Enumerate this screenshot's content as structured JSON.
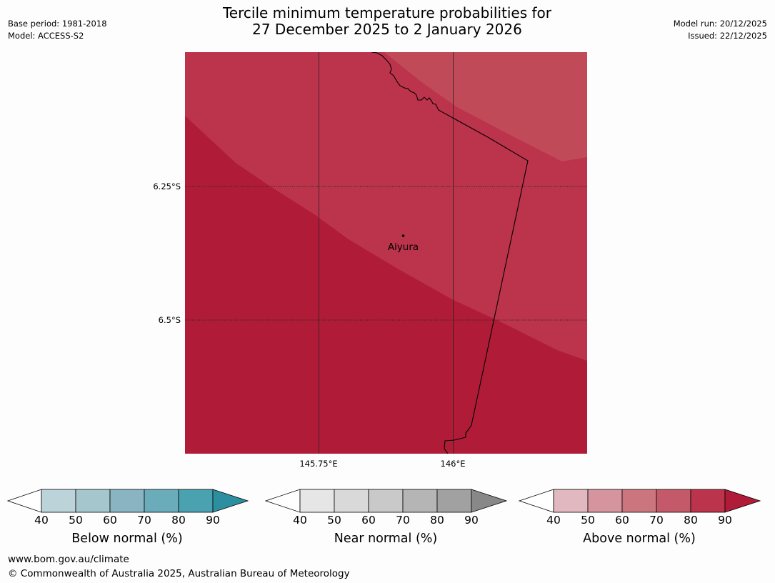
{
  "header": {
    "title_line1": "Tercile minimum temperature probabilities for",
    "title_line2": "27 December 2025 to 2 January 2026",
    "base_period": "Base period: 1981-2018",
    "model": "Model: ACCESS-S2",
    "model_run": "Model run: 20/12/2025",
    "issued": "Issued: 22/12/2025"
  },
  "map": {
    "lat_labels": [
      "6.25°S",
      "6.5°S"
    ],
    "lon_labels": [
      "145.75°E",
      "146°E"
    ],
    "place": "Aiyura",
    "colors": {
      "above_80_90": "#b01c38",
      "above_70_80": "#bc334c",
      "above_60_70": "#c04a57"
    }
  },
  "colorbars": [
    {
      "title": "Below normal (%)",
      "ticks": [
        "40",
        "50",
        "60",
        "70",
        "80",
        "90"
      ],
      "colors": [
        "#ffffff",
        "#bcd3da",
        "#a6c6cd",
        "#88b5c1",
        "#6aacb9",
        "#4aa1af",
        "#2b8f9f"
      ]
    },
    {
      "title": "Near normal (%)",
      "ticks": [
        "40",
        "50",
        "60",
        "70",
        "80",
        "90"
      ],
      "colors": [
        "#ffffff",
        "#e6e6e6",
        "#d9d9d9",
        "#c9c9c9",
        "#b5b5b5",
        "#a1a1a1",
        "#888888"
      ]
    },
    {
      "title": "Above normal (%)",
      "ticks": [
        "40",
        "50",
        "60",
        "70",
        "80",
        "90"
      ],
      "colors": [
        "#ffffff",
        "#e1b8bf",
        "#d6949e",
        "#cb767f",
        "#c35969",
        "#bc334c",
        "#b01c38"
      ]
    }
  ],
  "footer": {
    "url": "www.bom.gov.au/climate",
    "copyright": "© Commonwealth of Australia 2025, Australian Bureau of Meteorology"
  }
}
